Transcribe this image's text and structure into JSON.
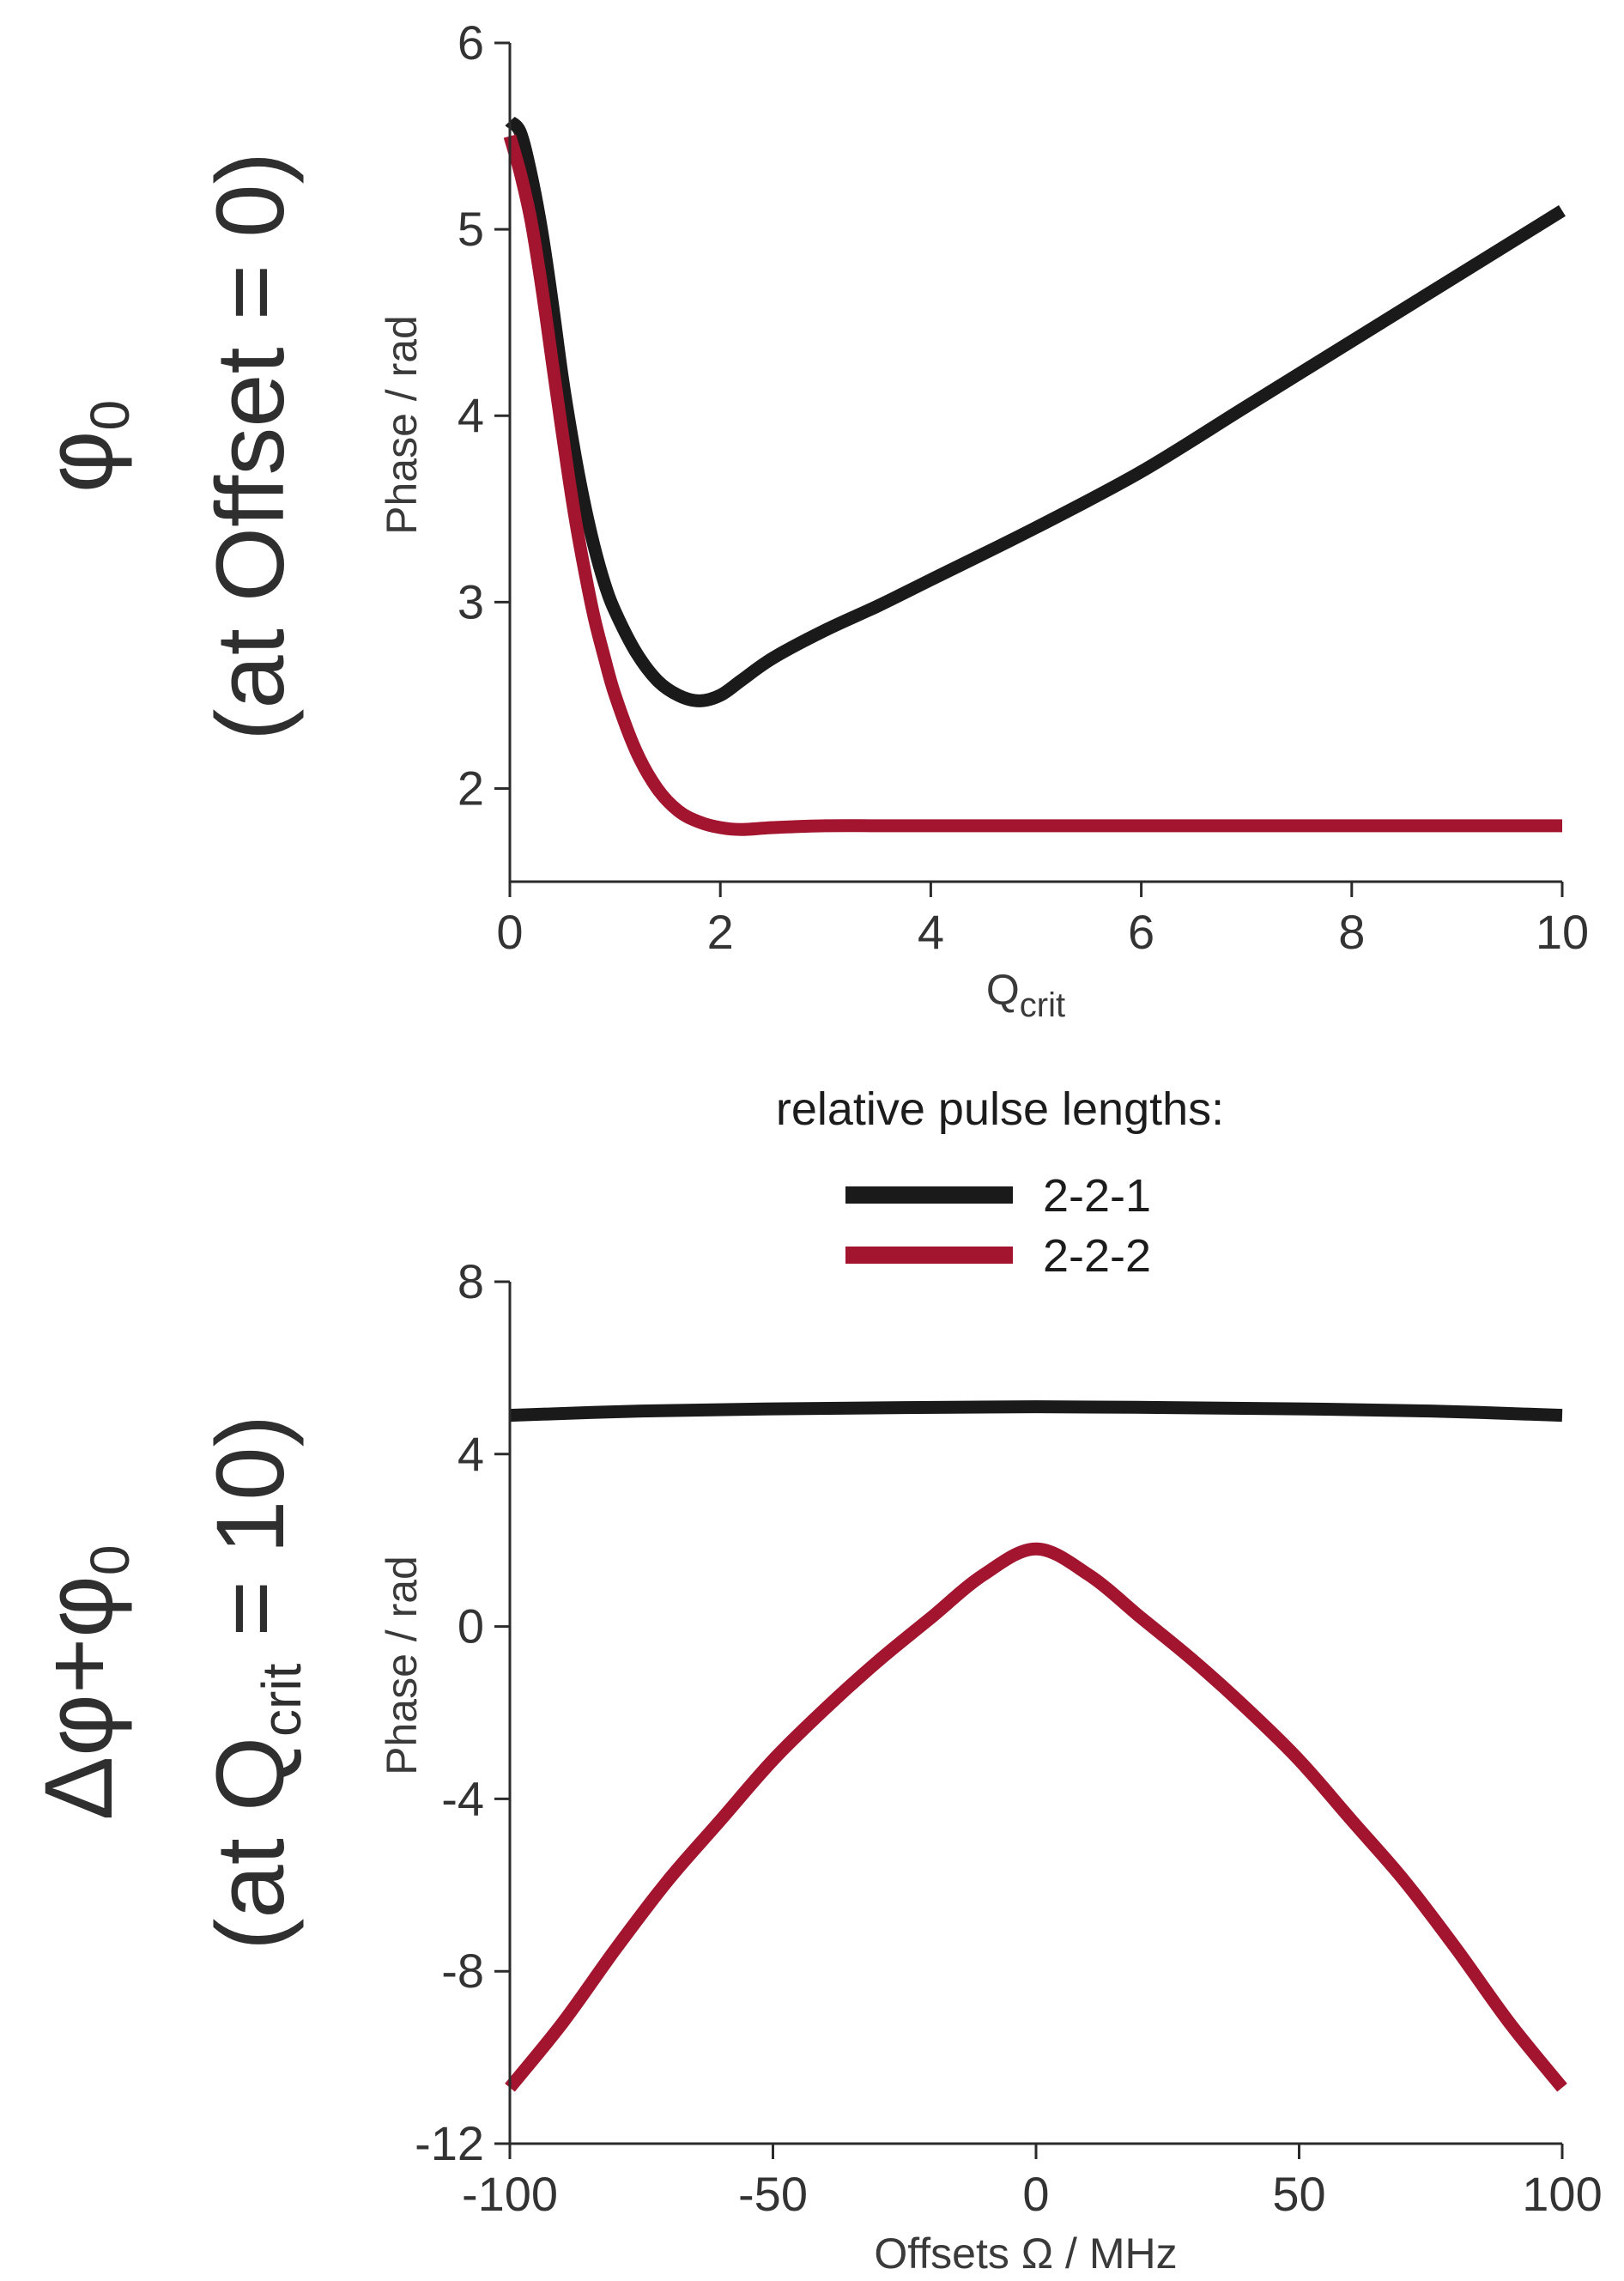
{
  "colors": {
    "series_2_2_1": "#1a1a1a",
    "series_2_2_2": "#a3142e",
    "axis": "#2b2b2b"
  },
  "row_labels": {
    "top": {
      "symbol": "φ",
      "sub": "0",
      "line2": "(at Offset = 0)"
    },
    "bottom": {
      "prefix": "Δφ+φ",
      "sub": "0",
      "line2_pre": "(at Q",
      "line2_sub": "crit",
      "line2_post": " = 10)"
    }
  },
  "legend": {
    "title": "relative pulse lengths:",
    "entries": [
      "2-2-1",
      "2-2-2"
    ]
  },
  "chart_data": [
    {
      "type": "line",
      "title": "",
      "xlabel": "Q",
      "xlabel_sub": "crit",
      "ylabel": "Phase / rad",
      "xlim": [
        0,
        10
      ],
      "ylim": [
        1.5,
        6
      ],
      "xticks": [
        0,
        2,
        4,
        6,
        8,
        10
      ],
      "yticks": [
        2,
        3,
        4,
        5,
        6
      ],
      "grid": false,
      "series": [
        {
          "name": "2-2-1",
          "color": "#1a1a1a",
          "x": [
            0,
            0.1,
            0.2,
            0.3,
            0.4,
            0.5,
            0.6,
            0.7,
            0.8,
            0.9,
            1.0,
            1.2,
            1.4,
            1.6,
            1.8,
            2.0,
            2.2,
            2.5,
            3.0,
            3.5,
            4.0,
            5.0,
            6.0,
            7.0,
            8.0,
            9.0,
            10.0
          ],
          "y": [
            5.58,
            5.52,
            5.3,
            5.0,
            4.62,
            4.2,
            3.85,
            3.55,
            3.3,
            3.1,
            2.95,
            2.73,
            2.58,
            2.5,
            2.47,
            2.5,
            2.58,
            2.7,
            2.85,
            2.98,
            3.12,
            3.4,
            3.7,
            4.05,
            4.4,
            4.75,
            5.1
          ]
        },
        {
          "name": "2-2-2",
          "color": "#a3142e",
          "x": [
            0,
            0.1,
            0.2,
            0.3,
            0.4,
            0.5,
            0.6,
            0.7,
            0.8,
            0.9,
            1.0,
            1.2,
            1.4,
            1.6,
            1.8,
            2.0,
            2.2,
            2.5,
            3.0,
            3.5,
            4.0,
            5.0,
            6.0,
            7.0,
            8.0,
            9.0,
            10.0
          ],
          "y": [
            5.5,
            5.3,
            5.05,
            4.7,
            4.3,
            3.9,
            3.52,
            3.2,
            2.92,
            2.7,
            2.5,
            2.2,
            2.0,
            1.88,
            1.82,
            1.79,
            1.78,
            1.79,
            1.8,
            1.8,
            1.8,
            1.8,
            1.8,
            1.8,
            1.8,
            1.8,
            1.8
          ]
        }
      ]
    },
    {
      "type": "line",
      "title": "",
      "xlabel": "Offsets Ω / MHz",
      "ylabel": "Phase / rad",
      "xlim": [
        -100,
        100
      ],
      "ylim": [
        -12,
        8
      ],
      "xticks": [
        -100,
        -50,
        0,
        50,
        100
      ],
      "yticks": [
        -12,
        -8,
        -4,
        0,
        4,
        8
      ],
      "grid": false,
      "series": [
        {
          "name": "2-2-1",
          "color": "#1a1a1a",
          "x": [
            -100,
            -75,
            -50,
            -25,
            0,
            25,
            50,
            75,
            100
          ],
          "y": [
            4.9,
            5.0,
            5.05,
            5.08,
            5.1,
            5.08,
            5.05,
            5.0,
            4.9
          ]
        },
        {
          "name": "2-2-2",
          "color": "#a3142e",
          "x": [
            -100,
            -90,
            -80,
            -70,
            -60,
            -50,
            -40,
            -30,
            -20,
            -10,
            0,
            10,
            20,
            30,
            40,
            50,
            60,
            70,
            80,
            90,
            100
          ],
          "y": [
            -10.7,
            -9.2,
            -7.5,
            -5.9,
            -4.5,
            -3.1,
            -1.9,
            -0.8,
            0.2,
            1.2,
            1.8,
            1.2,
            0.2,
            -0.8,
            -1.9,
            -3.1,
            -4.5,
            -5.9,
            -7.5,
            -9.2,
            -10.7
          ]
        }
      ]
    }
  ]
}
